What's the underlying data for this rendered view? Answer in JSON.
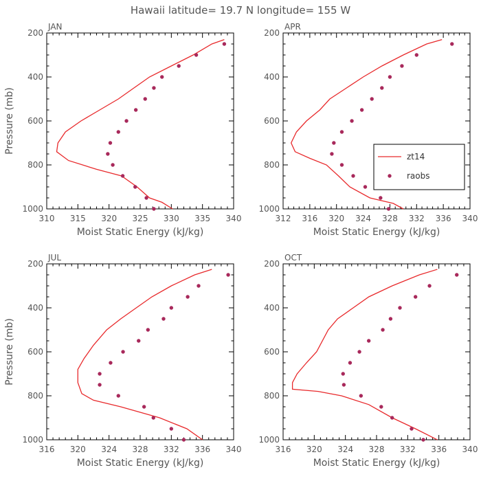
{
  "title": "Hawaii  latitude= 19.7 N longitude= 155 W",
  "chart_data": [
    {
      "type": "line",
      "panel_title": "JAN",
      "xlabel": "Moist Static Energy (kJ/kg)",
      "ylabel": "Pressure (mb)",
      "xlim": [
        310,
        340
      ],
      "ylim": [
        200,
        1000
      ],
      "y_inverted": true,
      "xticks": [
        310,
        315,
        320,
        325,
        330,
        335,
        340
      ],
      "yticks": [
        200,
        400,
        600,
        800,
        1000
      ],
      "series": [
        {
          "name": "zt14",
          "kind": "line",
          "x": [
            338.5,
            336.5,
            333.5,
            330.0,
            326.5,
            324.0,
            321.5,
            318.5,
            315.5,
            313.0,
            311.8,
            311.6,
            313.5,
            318.0,
            322.0,
            324.5,
            326.5,
            328.5,
            330.2
          ],
          "y": [
            230,
            250,
            300,
            350,
            400,
            450,
            500,
            550,
            600,
            650,
            700,
            740,
            780,
            820,
            850,
            900,
            950,
            970,
            1000
          ]
        },
        {
          "name": "raobs",
          "kind": "points",
          "x": [
            338.5,
            334.0,
            331.2,
            328.5,
            327.2,
            325.8,
            324.3,
            322.8,
            321.5,
            320.2,
            319.8,
            320.6,
            322.2,
            324.2,
            326.0,
            327.2
          ],
          "y": [
            250,
            300,
            350,
            400,
            450,
            500,
            550,
            600,
            650,
            700,
            750,
            800,
            850,
            900,
            950,
            1000
          ]
        }
      ]
    },
    {
      "type": "line",
      "panel_title": "APR",
      "xlabel": "Moist Static Energy (kJ/kg)",
      "ylabel": "",
      "xlim": [
        312,
        340
      ],
      "ylim": [
        200,
        1000
      ],
      "y_inverted": true,
      "xticks": [
        312,
        316,
        320,
        324,
        328,
        332,
        336,
        340
      ],
      "yticks": [
        200,
        400,
        600,
        800,
        1000
      ],
      "legend": {
        "placement": "center-right",
        "entries": [
          "zt14",
          "raobs"
        ]
      },
      "series": [
        {
          "name": "zt14",
          "kind": "line",
          "x": [
            335.8,
            333.5,
            330.0,
            326.8,
            324.0,
            321.5,
            319.0,
            317.5,
            315.5,
            314.0,
            313.2,
            313.8,
            316.0,
            318.5,
            320.3,
            322.0,
            325.0,
            328.5,
            330.0
          ],
          "y": [
            230,
            250,
            300,
            350,
            400,
            450,
            500,
            550,
            600,
            650,
            700,
            740,
            770,
            800,
            850,
            900,
            950,
            975,
            1000
          ]
        },
        {
          "name": "raobs",
          "kind": "points",
          "x": [
            337.3,
            332.0,
            329.8,
            328.0,
            326.8,
            325.3,
            323.8,
            322.3,
            320.8,
            319.6,
            319.3,
            320.8,
            322.5,
            324.3,
            326.6,
            327.8
          ],
          "y": [
            250,
            300,
            350,
            400,
            450,
            500,
            550,
            600,
            650,
            700,
            750,
            800,
            850,
            900,
            950,
            1000
          ]
        }
      ]
    },
    {
      "type": "line",
      "panel_title": "JUL",
      "xlabel": "Moist Static Energy (kJ/kg)",
      "ylabel": "Pressure (mb)",
      "xlim": [
        316,
        340
      ],
      "ylim": [
        200,
        1000
      ],
      "y_inverted": true,
      "xticks": [
        316,
        320,
        324,
        328,
        332,
        336,
        340
      ],
      "yticks": [
        200,
        400,
        600,
        800,
        1000
      ],
      "series": [
        {
          "name": "zt14",
          "kind": "line",
          "x": [
            337.2,
            335.0,
            332.0,
            329.5,
            327.5,
            325.5,
            323.7,
            322.0,
            320.8,
            320.0,
            320.0,
            320.5,
            322.0,
            325.5,
            330.5,
            334.0,
            336.0
          ],
          "y": [
            225,
            250,
            300,
            350,
            400,
            450,
            500,
            570,
            630,
            680,
            740,
            790,
            820,
            850,
            900,
            950,
            1000
          ]
        },
        {
          "name": "raobs",
          "kind": "points",
          "x": [
            339.3,
            335.5,
            334.1,
            332.0,
            331.0,
            329.0,
            327.8,
            325.8,
            324.2,
            322.8,
            322.8,
            325.2,
            328.5,
            329.7,
            332.0,
            333.6
          ],
          "y": [
            250,
            300,
            350,
            400,
            450,
            500,
            550,
            600,
            650,
            700,
            750,
            800,
            850,
            900,
            950,
            1000
          ]
        }
      ]
    },
    {
      "type": "line",
      "panel_title": "OCT",
      "xlabel": "Moist Static Energy (kJ/kg)",
      "ylabel": "",
      "xlim": [
        316,
        340
      ],
      "ylim": [
        200,
        1000
      ],
      "y_inverted": true,
      "xticks": [
        316,
        320,
        324,
        328,
        332,
        336,
        340
      ],
      "yticks": [
        200,
        400,
        600,
        800,
        1000
      ],
      "series": [
        {
          "name": "zt14",
          "kind": "line",
          "x": [
            335.8,
            333.5,
            330.0,
            327.0,
            325.0,
            323.0,
            321.8,
            320.3,
            319.0,
            317.8,
            317.2,
            317.2,
            320.5,
            323.5,
            327.0,
            330.0,
            333.0,
            335.8
          ],
          "y": [
            225,
            250,
            300,
            350,
            400,
            450,
            500,
            600,
            650,
            700,
            740,
            770,
            780,
            800,
            840,
            900,
            950,
            1000
          ]
        },
        {
          "name": "raobs",
          "kind": "points",
          "x": [
            338.3,
            334.8,
            333.0,
            331.0,
            329.8,
            328.8,
            327.0,
            325.8,
            324.6,
            323.7,
            323.8,
            326.0,
            328.6,
            330.0,
            332.5,
            334.0
          ],
          "y": [
            250,
            300,
            350,
            400,
            450,
            500,
            550,
            600,
            650,
            700,
            750,
            800,
            850,
            900,
            950,
            1000
          ]
        }
      ]
    }
  ],
  "colors": {
    "line": "#e8292b",
    "points": "#a8295b",
    "axis": "#000000",
    "text": "#555555"
  }
}
